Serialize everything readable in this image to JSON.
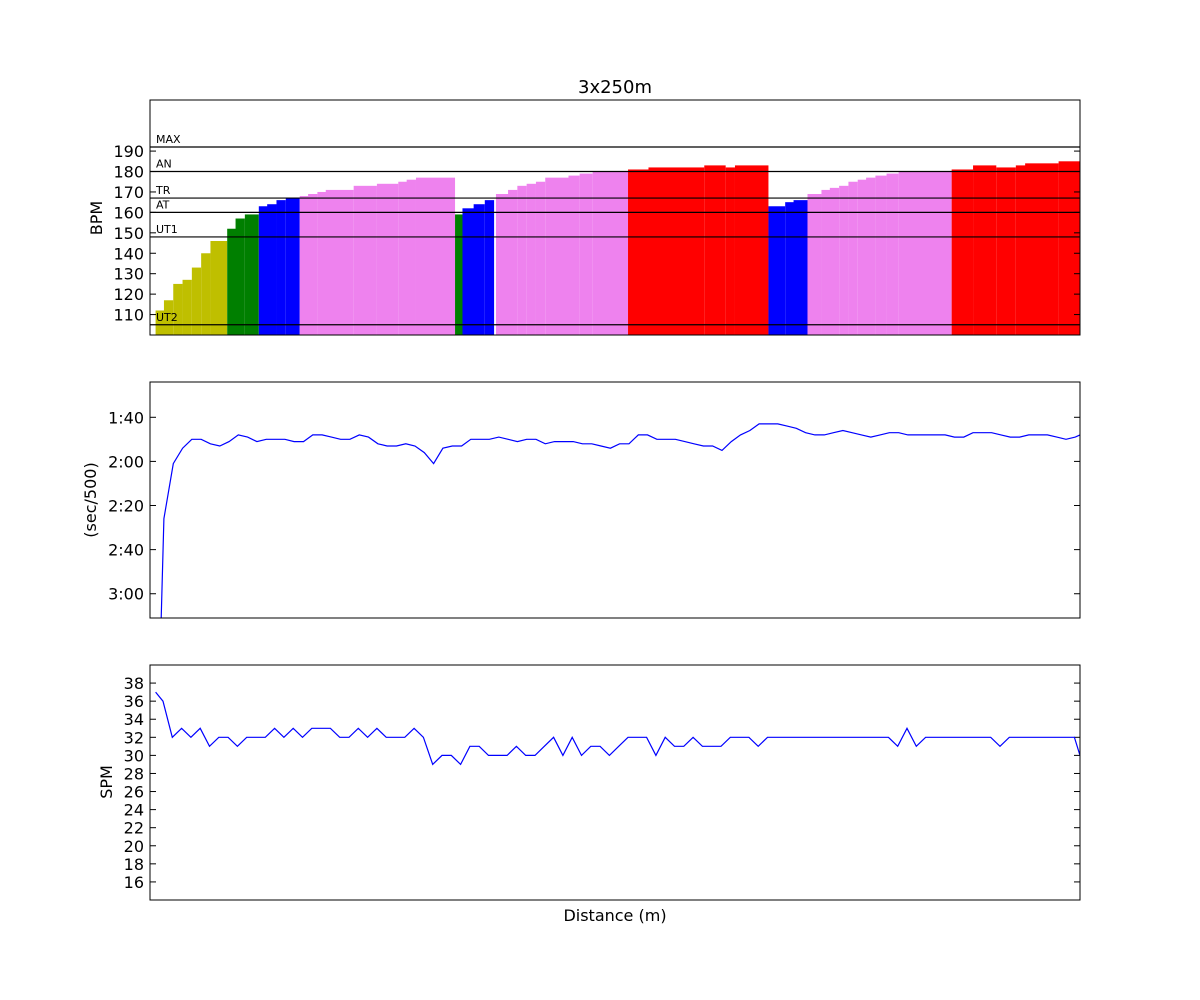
{
  "chart_data": [
    {
      "type": "bar",
      "title": "3x250m",
      "ylabel": "BPM",
      "xlabel": "",
      "ylim": [
        100,
        215
      ],
      "yticks": [
        110,
        120,
        130,
        140,
        150,
        160,
        170,
        180,
        190
      ],
      "xlim": [
        0,
        1000
      ],
      "zone_lines": [
        {
          "label": "MAX",
          "value": 192
        },
        {
          "label": "AN",
          "value": 180
        },
        {
          "label": "TR",
          "value": 167
        },
        {
          "label": "AT",
          "value": 160
        },
        {
          "label": "UT1",
          "value": 148
        },
        {
          "label": "UT2",
          "value": 105
        }
      ],
      "zone_colors": {
        "UT2": "#bfbf00",
        "UT1": "#007f00",
        "AT": "#0000ff",
        "TR": "#ee82ee",
        "AN": "#ff0000"
      },
      "bars": [
        {
          "x": 6,
          "w": 10,
          "value": 112,
          "zone": "UT2"
        },
        {
          "x": 15,
          "w": 10,
          "value": 117,
          "zone": "UT2"
        },
        {
          "x": 25,
          "w": 10,
          "value": 125,
          "zone": "UT2"
        },
        {
          "x": 35,
          "w": 10,
          "value": 127,
          "zone": "UT2"
        },
        {
          "x": 45,
          "w": 10,
          "value": 133,
          "zone": "UT2"
        },
        {
          "x": 55,
          "w": 10,
          "value": 140,
          "zone": "UT2"
        },
        {
          "x": 65,
          "w": 18,
          "value": 146,
          "zone": "UT2"
        },
        {
          "x": 83,
          "w": 10,
          "value": 152,
          "zone": "UT1"
        },
        {
          "x": 92,
          "w": 10,
          "value": 157,
          "zone": "UT1"
        },
        {
          "x": 102,
          "w": 15,
          "value": 159,
          "zone": "UT1"
        },
        {
          "x": 117,
          "w": 10,
          "value": 163,
          "zone": "AT"
        },
        {
          "x": 126,
          "w": 10,
          "value": 164,
          "zone": "AT"
        },
        {
          "x": 136,
          "w": 10,
          "value": 166,
          "zone": "AT"
        },
        {
          "x": 146,
          "w": 15,
          "value": 167,
          "zone": "AT"
        },
        {
          "x": 161,
          "w": 10,
          "value": 168,
          "zone": "TR"
        },
        {
          "x": 170,
          "w": 10,
          "value": 169,
          "zone": "TR"
        },
        {
          "x": 180,
          "w": 10,
          "value": 170,
          "zone": "TR"
        },
        {
          "x": 189,
          "w": 30,
          "value": 171,
          "zone": "TR"
        },
        {
          "x": 219,
          "w": 25,
          "value": 173,
          "zone": "TR"
        },
        {
          "x": 244,
          "w": 23,
          "value": 174,
          "zone": "TR"
        },
        {
          "x": 267,
          "w": 10,
          "value": 175,
          "zone": "TR"
        },
        {
          "x": 276,
          "w": 10,
          "value": 176,
          "zone": "TR"
        },
        {
          "x": 286,
          "w": 42,
          "value": 177,
          "zone": "TR"
        },
        {
          "x": 328,
          "w": 9,
          "value": 159,
          "zone": "UT1"
        },
        {
          "x": 336,
          "w": 13,
          "value": 162,
          "zone": "AT"
        },
        {
          "x": 348,
          "w": 12,
          "value": 164,
          "zone": "AT"
        },
        {
          "x": 360,
          "w": 10,
          "value": 166,
          "zone": "AT"
        },
        {
          "x": 372,
          "w": 14,
          "value": 169,
          "zone": "TR"
        },
        {
          "x": 385,
          "w": 10,
          "value": 171,
          "zone": "TR"
        },
        {
          "x": 395,
          "w": 10,
          "value": 173,
          "zone": "TR"
        },
        {
          "x": 405,
          "w": 10,
          "value": 174,
          "zone": "TR"
        },
        {
          "x": 415,
          "w": 10,
          "value": 175,
          "zone": "TR"
        },
        {
          "x": 425,
          "w": 25,
          "value": 177,
          "zone": "TR"
        },
        {
          "x": 450,
          "w": 12,
          "value": 178,
          "zone": "TR"
        },
        {
          "x": 462,
          "w": 14,
          "value": 179,
          "zone": "TR"
        },
        {
          "x": 476,
          "w": 38,
          "value": 180,
          "zone": "TR"
        },
        {
          "x": 514,
          "w": 23,
          "value": 181,
          "zone": "AN"
        },
        {
          "x": 536,
          "w": 60,
          "value": 182,
          "zone": "AN"
        },
        {
          "x": 596,
          "w": 23,
          "value": 183,
          "zone": "AN"
        },
        {
          "x": 619,
          "w": 10,
          "value": 182,
          "zone": "AN"
        },
        {
          "x": 629,
          "w": 36,
          "value": 183,
          "zone": "AN"
        },
        {
          "x": 665,
          "w": 18,
          "value": 163,
          "zone": "AT"
        },
        {
          "x": 683,
          "w": 10,
          "value": 165,
          "zone": "AT"
        },
        {
          "x": 692,
          "w": 15,
          "value": 166,
          "zone": "AT"
        },
        {
          "x": 707,
          "w": 15,
          "value": 169,
          "zone": "TR"
        },
        {
          "x": 722,
          "w": 10,
          "value": 171,
          "zone": "TR"
        },
        {
          "x": 731,
          "w": 10,
          "value": 172,
          "zone": "TR"
        },
        {
          "x": 741,
          "w": 10,
          "value": 173,
          "zone": "TR"
        },
        {
          "x": 751,
          "w": 10,
          "value": 175,
          "zone": "TR"
        },
        {
          "x": 761,
          "w": 10,
          "value": 176,
          "zone": "TR"
        },
        {
          "x": 770,
          "w": 10,
          "value": 177,
          "zone": "TR"
        },
        {
          "x": 780,
          "w": 12,
          "value": 178,
          "zone": "TR"
        },
        {
          "x": 792,
          "w": 13,
          "value": 179,
          "zone": "TR"
        },
        {
          "x": 805,
          "w": 57,
          "value": 180,
          "zone": "TR"
        },
        {
          "x": 862,
          "w": 23,
          "value": 181,
          "zone": "AN"
        },
        {
          "x": 885,
          "w": 25,
          "value": 183,
          "zone": "AN"
        },
        {
          "x": 910,
          "w": 21,
          "value": 182,
          "zone": "AN"
        },
        {
          "x": 931,
          "w": 11,
          "value": 183,
          "zone": "AN"
        },
        {
          "x": 941,
          "w": 36,
          "value": 184,
          "zone": "AN"
        },
        {
          "x": 977,
          "w": 23,
          "value": 185,
          "zone": "AN"
        }
      ]
    },
    {
      "type": "line",
      "title": "",
      "ylabel": "(sec/500)",
      "xlabel": "",
      "y_inverted": true,
      "ylim": [
        191,
        84
      ],
      "xlim": [
        0,
        1000
      ],
      "yticks": [
        100,
        120,
        140,
        160,
        180
      ],
      "yticklabels": [
        "1:40",
        "2:00",
        "2:20",
        "2:40",
        "3:00"
      ],
      "color": "#0000ff",
      "x": [
        12,
        15,
        25,
        35,
        45,
        55,
        65,
        75,
        85,
        95,
        105,
        115,
        125,
        135,
        145,
        155,
        165,
        175,
        185,
        195,
        205,
        215,
        225,
        235,
        245,
        255,
        265,
        275,
        285,
        295,
        305,
        315,
        325,
        335,
        345,
        355,
        365,
        375,
        385,
        395,
        405,
        415,
        425,
        435,
        445,
        455,
        465,
        475,
        485,
        495,
        505,
        515,
        525,
        535,
        545,
        555,
        565,
        575,
        585,
        595,
        605,
        615,
        625,
        635,
        645,
        655,
        665,
        675,
        685,
        695,
        705,
        715,
        725,
        735,
        745,
        755,
        765,
        775,
        785,
        795,
        805,
        815,
        825,
        835,
        845,
        855,
        865,
        875,
        885,
        895,
        905,
        915,
        925,
        935,
        945,
        955,
        965,
        975,
        985,
        995,
        1000
      ],
      "y": [
        191,
        146,
        121,
        114,
        110,
        110,
        112,
        113,
        111,
        108,
        109,
        111,
        110,
        110,
        110,
        111,
        111,
        108,
        108,
        109,
        110,
        110,
        108,
        109,
        112,
        113,
        113,
        112,
        113,
        116,
        121,
        114,
        113,
        113,
        110,
        110,
        110,
        109,
        110,
        111,
        110,
        110,
        112,
        111,
        111,
        111,
        112,
        112,
        113,
        114,
        112,
        112,
        108,
        108,
        110,
        110,
        110,
        111,
        112,
        113,
        113,
        115,
        111,
        108,
        106,
        103,
        103,
        103,
        104,
        105,
        107,
        108,
        108,
        107,
        106,
        107,
        108,
        109,
        108,
        107,
        107,
        108,
        108,
        108,
        108,
        108,
        109,
        109,
        107,
        107,
        107,
        108,
        109,
        109,
        108,
        108,
        108,
        109,
        110,
        109,
        108
      ]
    },
    {
      "type": "line",
      "title": "",
      "ylabel": "SPM",
      "xlabel": "Distance (m)",
      "ylim": [
        14,
        40
      ],
      "xlim": [
        0,
        1000
      ],
      "yticks": [
        16,
        18,
        20,
        22,
        24,
        26,
        28,
        30,
        32,
        34,
        36,
        38
      ],
      "color": "#0000ff",
      "x": [
        6,
        14,
        24,
        34,
        44,
        54,
        64,
        74,
        84,
        94,
        104,
        114,
        124,
        134,
        144,
        154,
        164,
        174,
        184,
        194,
        204,
        214,
        224,
        234,
        244,
        254,
        264,
        274,
        284,
        294,
        304,
        314,
        324,
        334,
        344,
        354,
        364,
        374,
        384,
        394,
        404,
        414,
        424,
        434,
        444,
        454,
        464,
        474,
        484,
        494,
        504,
        514,
        524,
        534,
        544,
        554,
        564,
        574,
        584,
        594,
        604,
        614,
        624,
        634,
        644,
        654,
        664,
        674,
        684,
        694,
        704,
        714,
        724,
        734,
        744,
        754,
        764,
        774,
        784,
        794,
        804,
        814,
        824,
        834,
        844,
        854,
        864,
        874,
        884,
        894,
        904,
        914,
        924,
        934,
        944,
        954,
        964,
        974,
        984,
        994,
        1000
      ],
      "y": [
        37,
        36,
        32,
        33,
        32,
        33,
        31,
        32,
        32,
        31,
        32,
        32,
        32,
        33,
        32,
        33,
        32,
        33,
        33,
        33,
        32,
        32,
        33,
        32,
        33,
        32,
        32,
        32,
        33,
        32,
        29,
        30,
        30,
        29,
        31,
        31,
        30,
        30,
        30,
        31,
        30,
        30,
        31,
        32,
        30,
        32,
        30,
        31,
        31,
        30,
        31,
        32,
        32,
        32,
        30,
        32,
        31,
        31,
        32,
        31,
        31,
        31,
        32,
        32,
        32,
        31,
        32,
        32,
        32,
        32,
        32,
        32,
        32,
        32,
        32,
        32,
        32,
        32,
        32,
        32,
        31,
        33,
        31,
        32,
        32,
        32,
        32,
        32,
        32,
        32,
        32,
        31,
        32,
        32,
        32,
        32,
        32,
        32,
        32,
        32,
        30
      ]
    }
  ]
}
